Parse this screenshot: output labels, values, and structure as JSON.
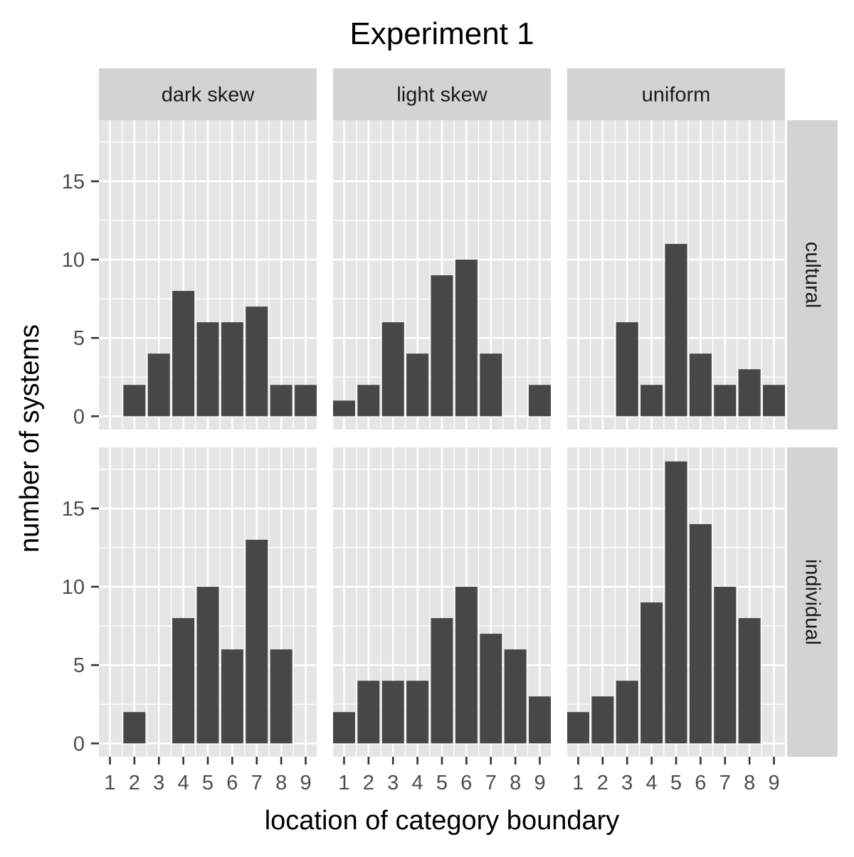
{
  "chart_data": {
    "type": "bar",
    "title": "Experiment 1",
    "xlabel": "location of category boundary",
    "ylabel": "number of systems",
    "categories": [
      "1",
      "2",
      "3",
      "4",
      "5",
      "6",
      "7",
      "8",
      "9"
    ],
    "x_range": [
      0.55,
      9.45
    ],
    "ylim": [
      -0.85,
      18.9
    ],
    "y_ticks": [
      0,
      5,
      10,
      15
    ],
    "grid": true,
    "columns": [
      "dark skew",
      "light skew",
      "uniform"
    ],
    "rows": [
      "cultural",
      "individual"
    ],
    "panels": [
      {
        "row": "cultural",
        "column": "dark skew",
        "values": [
          0,
          2,
          4,
          8,
          6,
          6,
          7,
          2,
          2
        ]
      },
      {
        "row": "cultural",
        "column": "light skew",
        "values": [
          1,
          2,
          6,
          4,
          9,
          10,
          4,
          0,
          2
        ]
      },
      {
        "row": "cultural",
        "column": "uniform",
        "values": [
          0,
          0,
          6,
          2,
          11,
          4,
          2,
          3,
          2
        ]
      },
      {
        "row": "individual",
        "column": "dark skew",
        "values": [
          0,
          2,
          0,
          8,
          10,
          6,
          13,
          6,
          0
        ]
      },
      {
        "row": "individual",
        "column": "light skew",
        "values": [
          2,
          4,
          4,
          4,
          8,
          10,
          7,
          6,
          3
        ]
      },
      {
        "row": "individual",
        "column": "uniform",
        "values": [
          2,
          3,
          4,
          9,
          18,
          14,
          10,
          8,
          0
        ]
      }
    ],
    "colors": {
      "bar": "#474747",
      "panel_bg": "#e5e5e5",
      "grid": "#ffffff",
      "strip_bg": "#d3d3d3",
      "tick": "#333333"
    }
  }
}
